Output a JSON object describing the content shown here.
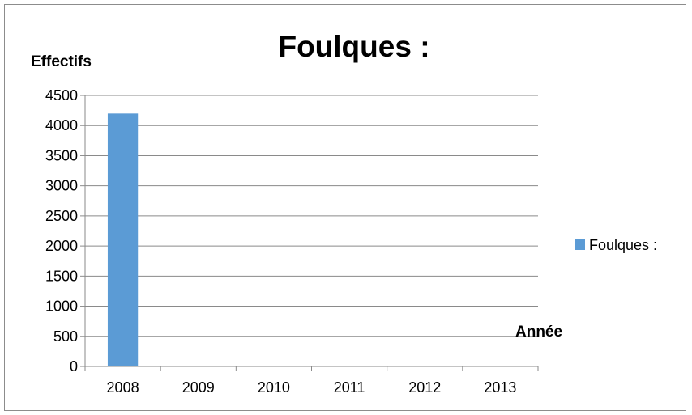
{
  "chart_data": {
    "type": "bar",
    "title": "Foulques :",
    "ylabel": "Effectifs",
    "xlabel": "Année",
    "categories": [
      "2008",
      "2009",
      "2010",
      "2011",
      "2012",
      "2013"
    ],
    "series": [
      {
        "name": "Foulques :",
        "values": [
          4200,
          0,
          0,
          0,
          0,
          0
        ],
        "color": "#5b9bd5"
      }
    ],
    "ylim": [
      0,
      4500
    ],
    "yticks": [
      0,
      500,
      1000,
      1500,
      2000,
      2500,
      3000,
      3500,
      4000,
      4500
    ],
    "grid": true,
    "legend_position": "right"
  }
}
